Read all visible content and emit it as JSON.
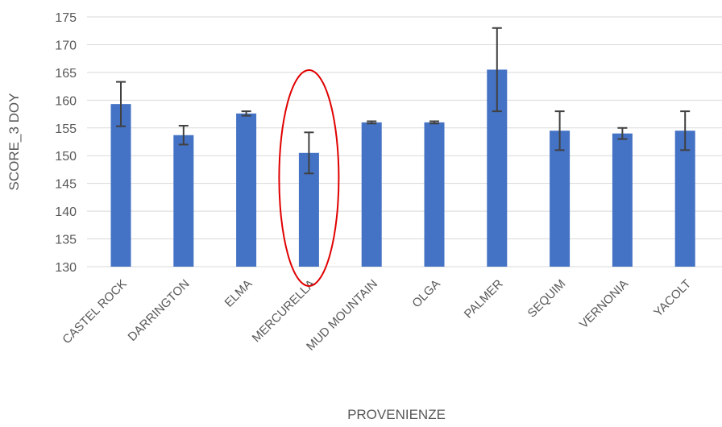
{
  "chart_data": {
    "type": "bar",
    "title": "",
    "xlabel": "PROVENIENZE",
    "ylabel": "SCORE_3 DOY",
    "ylim": [
      130,
      175
    ],
    "yticks": [
      130,
      135,
      140,
      145,
      150,
      155,
      160,
      165,
      170,
      175
    ],
    "grid": true,
    "categories": [
      "CASTEL ROCK",
      "DARRINGTON",
      "ELMA",
      "MERCURELLA",
      "MUD MOUNTAIN",
      "OLGA",
      "PALMER",
      "SEQUIM",
      "VERNONIA",
      "YACOLT"
    ],
    "series": [
      {
        "values": [
          159.3,
          153.7,
          157.6,
          150.5,
          156.0,
          156.0,
          165.5,
          154.5,
          154.0,
          154.5
        ],
        "error": [
          4.0,
          1.7,
          0.4,
          3.7,
          0.2,
          0.2,
          7.5,
          3.5,
          1.0,
          3.5
        ],
        "color": "#4472C4"
      }
    ],
    "annotations": [
      {
        "type": "ellipse",
        "target": "MERCURELLA",
        "color": "#E00000"
      }
    ]
  }
}
